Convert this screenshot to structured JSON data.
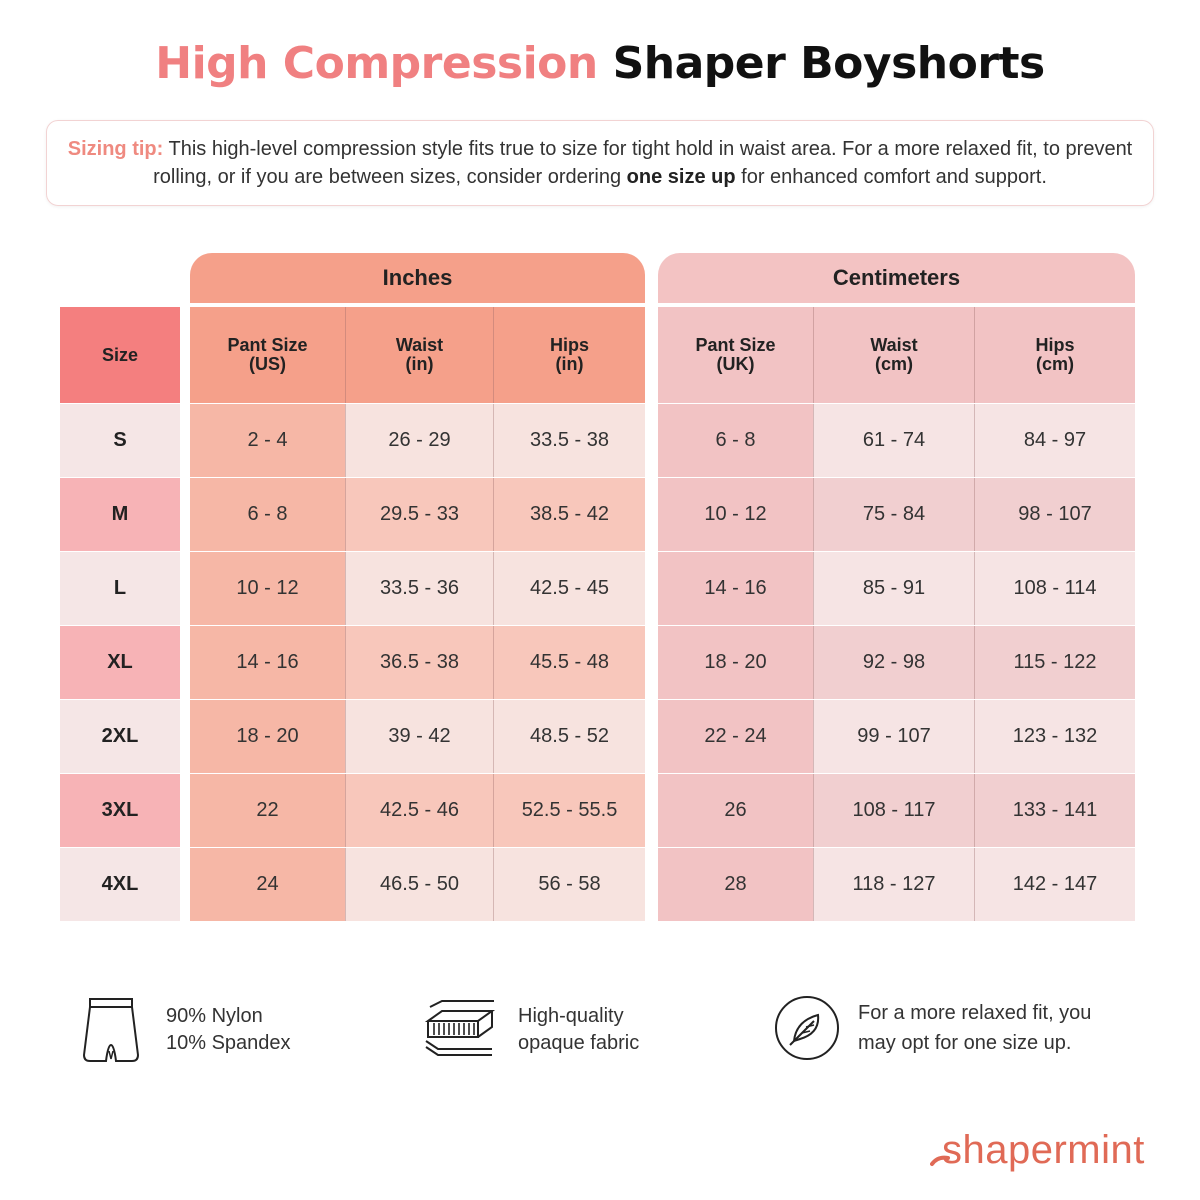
{
  "title": {
    "accent": "High Compression",
    "rest": "Shaper Boyshorts"
  },
  "tip": {
    "label": "Sizing tip:",
    "text1": " This high-level compression style fits true to size for tight hold in waist area. For a more relaxed fit, to prevent rolling, or if you are between sizes, consider ordering ",
    "bold": "one size up",
    "text2": " for enhanced comfort and support."
  },
  "groups": {
    "inches": "Inches",
    "centimeters": "Centimeters"
  },
  "headers": {
    "size": "Size",
    "cols": [
      {
        "l1": "Pant Size",
        "l2": "(US)"
      },
      {
        "l1": "Waist",
        "l2": "(in)"
      },
      {
        "l1": "Hips",
        "l2": "(in)"
      },
      {
        "l1": "Pant Size",
        "l2": "(UK)"
      },
      {
        "l1": "Waist",
        "l2": "(cm)"
      },
      {
        "l1": "Hips",
        "l2": "(cm)"
      }
    ]
  },
  "rows": [
    {
      "size": "S",
      "v": [
        "2 - 4",
        "26 - 29",
        "33.5 - 38",
        "6 - 8",
        "61 - 74",
        "84 - 97"
      ]
    },
    {
      "size": "M",
      "v": [
        "6 - 8",
        "29.5 - 33",
        "38.5 - 42",
        "10 - 12",
        "75 - 84",
        "98 - 107"
      ]
    },
    {
      "size": "L",
      "v": [
        "10 - 12",
        "33.5 - 36",
        "42.5 - 45",
        "14 - 16",
        "85 - 91",
        "108 - 114"
      ]
    },
    {
      "size": "XL",
      "v": [
        "14 - 16",
        "36.5 - 38",
        "45.5 - 48",
        "18 - 20",
        "92 - 98",
        "115 - 122"
      ]
    },
    {
      "size": "2XL",
      "v": [
        "18 - 20",
        "39 - 42",
        "48.5 - 52",
        "22 - 24",
        "99 - 107",
        "123 - 132"
      ]
    },
    {
      "size": "3XL",
      "v": [
        "22",
        "42.5 - 46",
        "52.5 - 55.5",
        "26",
        "108 - 117",
        "133 - 141"
      ]
    },
    {
      "size": "4XL",
      "v": [
        "24",
        "46.5 - 50",
        "56 - 58",
        "28",
        "118 - 127",
        "142 - 147"
      ]
    }
  ],
  "features": [
    {
      "icon": "boyshorts-icon",
      "l1": "90% Nylon",
      "l2": "10% Spandex"
    },
    {
      "icon": "fabric-layers-icon",
      "l1": "High-quality",
      "l2": "opaque fabric"
    },
    {
      "icon": "feather-icon",
      "l1": "For a more relaxed fit, you",
      "l2": "may opt for one size up."
    }
  ],
  "brand": "shapermint",
  "colors": {
    "accent": "#f08081",
    "size_header": "#f47f7f",
    "inches_header": "#f5a08a",
    "cm_header": "#f3c3c3",
    "brand": "#e06a56"
  }
}
